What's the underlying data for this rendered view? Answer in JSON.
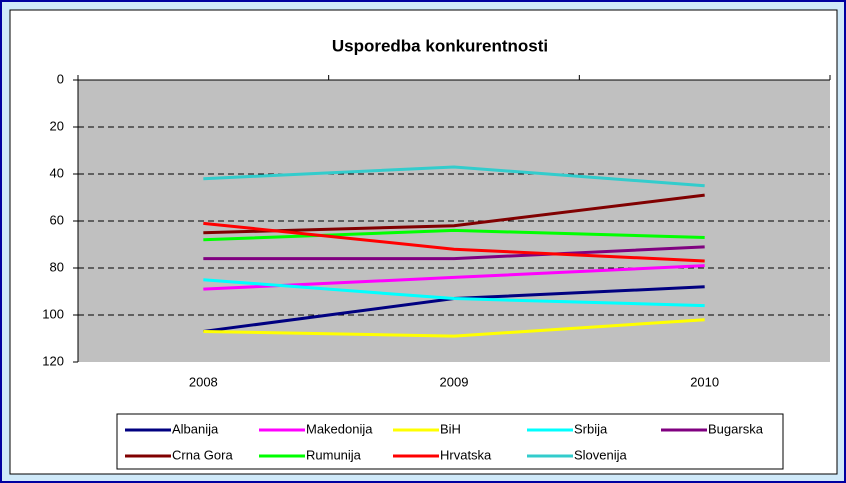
{
  "chart_data": {
    "type": "line",
    "title": "Usporedba konkurentnosti",
    "categories": [
      "2008",
      "2009",
      "2010"
    ],
    "series": [
      {
        "name": "Albanija",
        "color": "#000080",
        "values": [
          107,
          93,
          88
        ]
      },
      {
        "name": "Makedonija",
        "color": "#ff00ff",
        "values": [
          89,
          84,
          79
        ]
      },
      {
        "name": "BiH",
        "color": "#ffff00",
        "values": [
          107,
          109,
          102
        ]
      },
      {
        "name": "Srbija",
        "color": "#00ffff",
        "values": [
          85,
          93,
          96
        ]
      },
      {
        "name": "Bugarska",
        "color": "#800080",
        "values": [
          76,
          76,
          71
        ]
      },
      {
        "name": "Crna Gora",
        "color": "#800000",
        "values": [
          65,
          62,
          49
        ]
      },
      {
        "name": "Rumunija",
        "color": "#00ff00",
        "values": [
          68,
          64,
          67
        ]
      },
      {
        "name": "Hrvatska",
        "color": "#ff0000",
        "values": [
          61,
          72,
          77
        ]
      },
      {
        "name": "Slovenija",
        "color": "#33cccc",
        "values": [
          42,
          37,
          45
        ]
      }
    ],
    "ylim": [
      0,
      120
    ],
    "yticks": [
      0,
      20,
      40,
      60,
      80,
      100,
      120
    ],
    "y_reversed": true,
    "grid": true,
    "legend": "bottom"
  }
}
